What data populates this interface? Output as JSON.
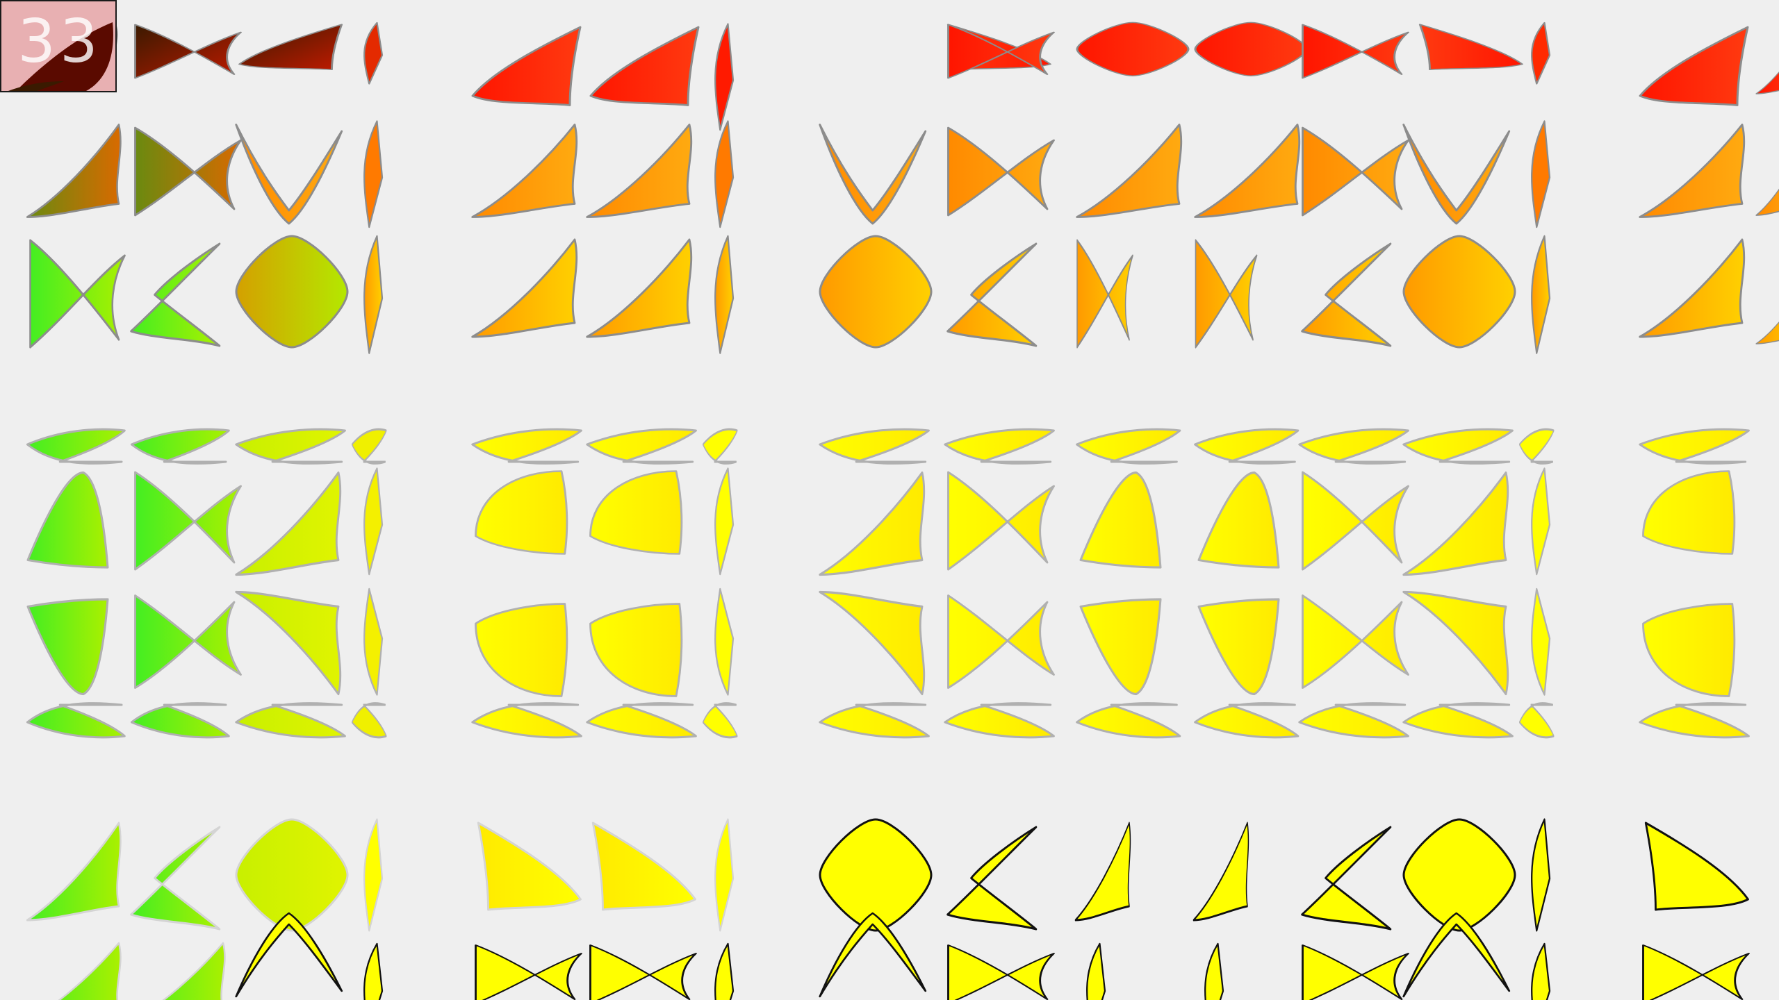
{
  "counter": {
    "value": "33"
  },
  "colors": {
    "background": "#efefef",
    "red": "#ff1a00",
    "orange": "#ff9a00",
    "yellow": "#ffff00",
    "green": "#44ee22",
    "dark": "#3a0a00",
    "outline_gray": "#8c8c8c",
    "outline_black": "#111111"
  },
  "icons": {
    "shape_kinds": [
      "crescent-lobe-icon",
      "chevron-wing-icon",
      "rounded-diamond-icon",
      "spike-icon",
      "bowtie-icon"
    ]
  }
}
